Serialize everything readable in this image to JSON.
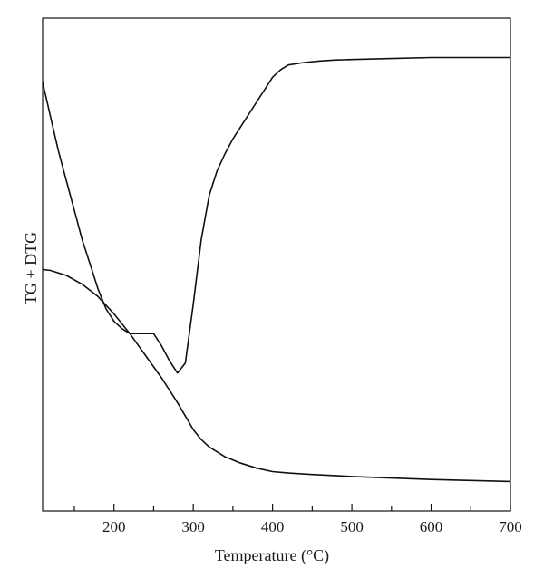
{
  "chart_data": {
    "type": "line",
    "title": "",
    "xlabel": "Temperature (°C)",
    "ylabel": "TG + DTG",
    "xlim": [
      110,
      700
    ],
    "ylim": [
      0,
      100
    ],
    "x_ticks": [
      200,
      300,
      400,
      500,
      600,
      700
    ],
    "x_minor_ticks": [
      150,
      250,
      350,
      450,
      550,
      650
    ],
    "y_ticks": [],
    "grid": false,
    "legend": "none",
    "line_color": "#111111",
    "series": [
      {
        "x": [
          110,
          120,
          130,
          140,
          150,
          160,
          170,
          180,
          190,
          200,
          210,
          220,
          230,
          240,
          250,
          260,
          270,
          280,
          290,
          300,
          310,
          320,
          330,
          340,
          350,
          360,
          370,
          380,
          390,
          400,
          410,
          420,
          440,
          460,
          480,
          500,
          550,
          600,
          650,
          700
        ],
        "values": [
          87,
          80,
          73,
          67,
          61,
          55,
          50,
          45,
          41,
          38.5,
          37,
          36,
          36,
          36,
          36,
          33.5,
          30.5,
          28,
          30,
          42,
          55,
          64,
          69,
          72.5,
          75.5,
          78,
          80.5,
          83,
          85.5,
          88,
          89.5,
          90.5,
          91,
          91.3,
          91.5,
          91.6,
          91.8,
          92,
          92,
          92
        ]
      },
      {
        "x": [
          110,
          120,
          140,
          160,
          180,
          200,
          220,
          240,
          260,
          280,
          300,
          310,
          320,
          340,
          360,
          380,
          400,
          420,
          450,
          500,
          550,
          600,
          650,
          700
        ],
        "values": [
          49,
          48.8,
          47.8,
          46,
          43.5,
          40,
          36,
          31.5,
          27,
          22,
          16.5,
          14.5,
          13,
          11,
          9.7,
          8.7,
          8,
          7.7,
          7.4,
          7,
          6.7,
          6.4,
          6.2,
          6
        ]
      }
    ]
  }
}
